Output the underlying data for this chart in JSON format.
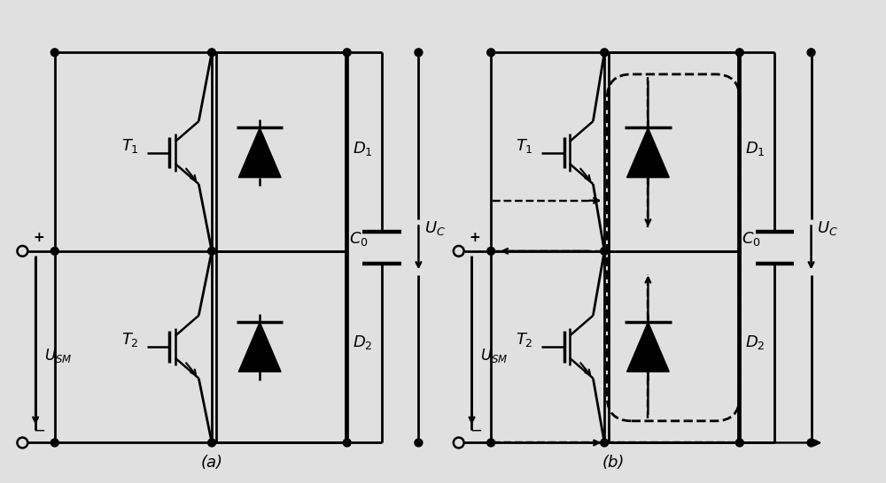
{
  "background_color": "#e0e0e0",
  "line_color": "#000000",
  "label_a": "(a)",
  "label_b": "(b)",
  "font_size": 13,
  "label_fontsize": 14
}
